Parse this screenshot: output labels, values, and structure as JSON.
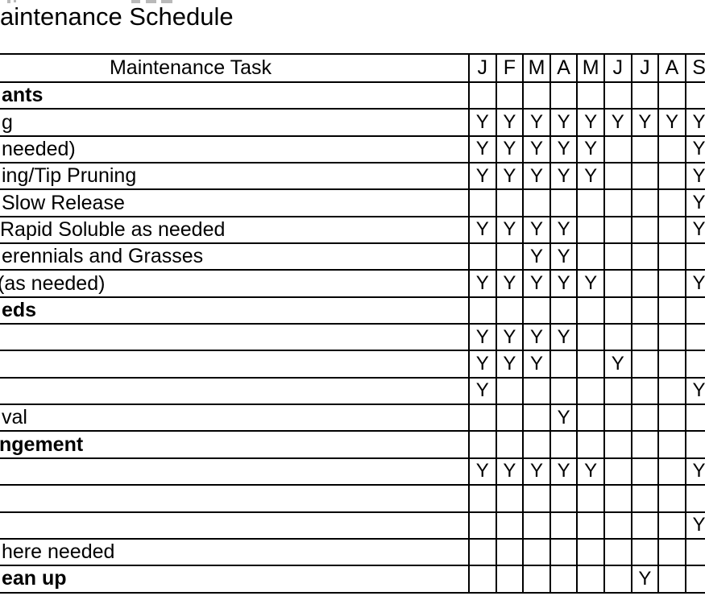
{
  "title": {
    "visible_fragment": "aintenance Schedule"
  },
  "table": {
    "task_column_header": "Maintenance Task",
    "month_headers": [
      "J",
      "F",
      "M",
      "A",
      "M",
      "J",
      "J",
      "A",
      "S"
    ],
    "mark_symbol": "Y",
    "rows": [
      {
        "label_fragment": "ants",
        "bold": true,
        "marks": [
          "",
          "",
          "",
          "",
          "",
          "",
          "",
          "",
          ""
        ]
      },
      {
        "label_fragment": "g",
        "bold": false,
        "marks": [
          "Y",
          "Y",
          "Y",
          "Y",
          "Y",
          "Y",
          "Y",
          "Y",
          "Y"
        ]
      },
      {
        "label_fragment": "needed)",
        "bold": false,
        "marks": [
          "Y",
          "Y",
          "Y",
          "Y",
          "Y",
          "",
          "",
          "",
          "Y"
        ]
      },
      {
        "label_fragment": "ing/Tip Pruning",
        "bold": false,
        "marks": [
          "Y",
          "Y",
          "Y",
          "Y",
          "Y",
          "",
          "",
          "",
          "Y"
        ]
      },
      {
        "label_fragment": "Slow Release",
        "bold": false,
        "marks": [
          "",
          "",
          "",
          "",
          "",
          "",
          "",
          "",
          "Y"
        ]
      },
      {
        "label_fragment": "Rapid Soluble as needed",
        "bold": false,
        "marks": [
          "Y",
          "Y",
          "Y",
          "Y",
          "",
          "",
          "",
          "",
          "Y"
        ]
      },
      {
        "label_fragment": "erennials and Grasses",
        "bold": false,
        "marks": [
          "",
          "",
          "Y",
          "Y",
          "",
          "",
          "",
          "",
          ""
        ]
      },
      {
        "label_fragment": "(as needed)",
        "bold": false,
        "marks": [
          "Y",
          "Y",
          "Y",
          "Y",
          "Y",
          "",
          "",
          "",
          "Y"
        ]
      },
      {
        "label_fragment": "eds",
        "bold": true,
        "marks": [
          "",
          "",
          "",
          "",
          "",
          "",
          "",
          "",
          ""
        ]
      },
      {
        "label_fragment": "",
        "bold": false,
        "marks": [
          "Y",
          "Y",
          "Y",
          "Y",
          "",
          "",
          "",
          "",
          ""
        ]
      },
      {
        "label_fragment": "",
        "bold": false,
        "marks": [
          "Y",
          "Y",
          "Y",
          "",
          "",
          "Y",
          "",
          "",
          ""
        ]
      },
      {
        "label_fragment": "",
        "bold": false,
        "marks": [
          "Y",
          "",
          "",
          "",
          "",
          "",
          "",
          "",
          "Y"
        ]
      },
      {
        "label_fragment": "val",
        "bold": false,
        "marks": [
          "",
          "",
          "",
          "Y",
          "",
          "",
          "",
          "",
          ""
        ]
      },
      {
        "label_fragment": "ngement",
        "bold": true,
        "marks": [
          "",
          "",
          "",
          "",
          "",
          "",
          "",
          "",
          ""
        ]
      },
      {
        "label_fragment": "",
        "bold": false,
        "marks": [
          "Y",
          "Y",
          "Y",
          "Y",
          "Y",
          "",
          "",
          "",
          "Y"
        ]
      },
      {
        "label_fragment": "",
        "bold": false,
        "marks": [
          "",
          "",
          "",
          "",
          "",
          "",
          "",
          "",
          ""
        ]
      },
      {
        "label_fragment": "",
        "bold": false,
        "marks": [
          "",
          "",
          "",
          "",
          "",
          "",
          "",
          "",
          "Y"
        ]
      },
      {
        "label_fragment": "here needed",
        "bold": false,
        "marks": [
          "",
          "",
          "",
          "",
          "",
          "",
          "",
          "",
          ""
        ]
      },
      {
        "label_fragment": "ean up",
        "bold": true,
        "marks": [
          "",
          "",
          "",
          "",
          "",
          "",
          "Y",
          "",
          ""
        ]
      }
    ]
  }
}
